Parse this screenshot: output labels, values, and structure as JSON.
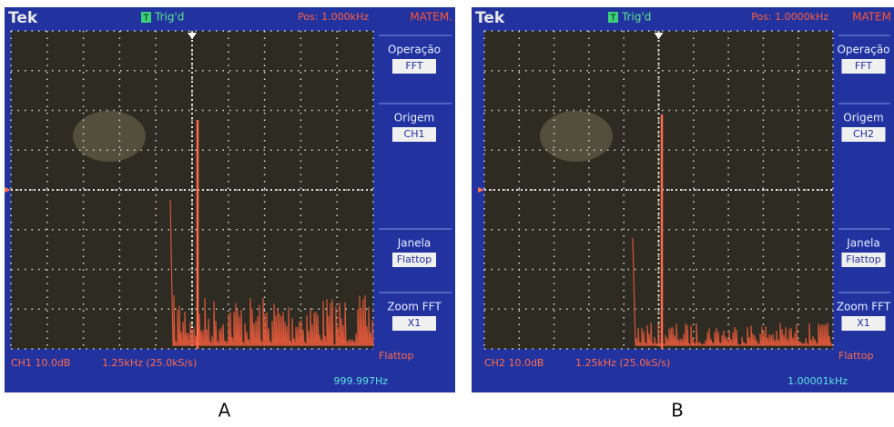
{
  "panels": [
    {
      "brand": "Tek",
      "trigger_icon": "T",
      "trigger": "Trig'd",
      "position": "Pos: 1.000kHz",
      "menu_title": "MATEM.",
      "menu": [
        {
          "label": "Operação",
          "value": "FFT"
        },
        {
          "label": "Origem",
          "value": "CH1"
        },
        {
          "label": "Janela",
          "value": "Flattop"
        },
        {
          "label": "Zoom FFT",
          "value": "X1"
        }
      ],
      "channel_scale": "CH1 10.0dB",
      "timebase": "1.25kHz (25.0kS/s)",
      "window": "Flattop",
      "frequency": "999.997Hz",
      "caption": "A"
    },
    {
      "brand": "Tek",
      "trigger_icon": "T",
      "trigger": "Trig'd",
      "position": "Pos: 1.0000kHz",
      "menu_title": "MATEM",
      "menu": [
        {
          "label": "Operação",
          "value": "FFT"
        },
        {
          "label": "Origem",
          "value": "CH2"
        },
        {
          "label": "Janela",
          "value": "Flattop"
        },
        {
          "label": "Zoom FFT",
          "value": "X1"
        }
      ],
      "channel_scale": "CH2 10.0dB",
      "timebase": "1.25kHz (25.0kS/s)",
      "window": "Flattop",
      "frequency": "1.00001kHz",
      "caption": "B"
    }
  ]
}
